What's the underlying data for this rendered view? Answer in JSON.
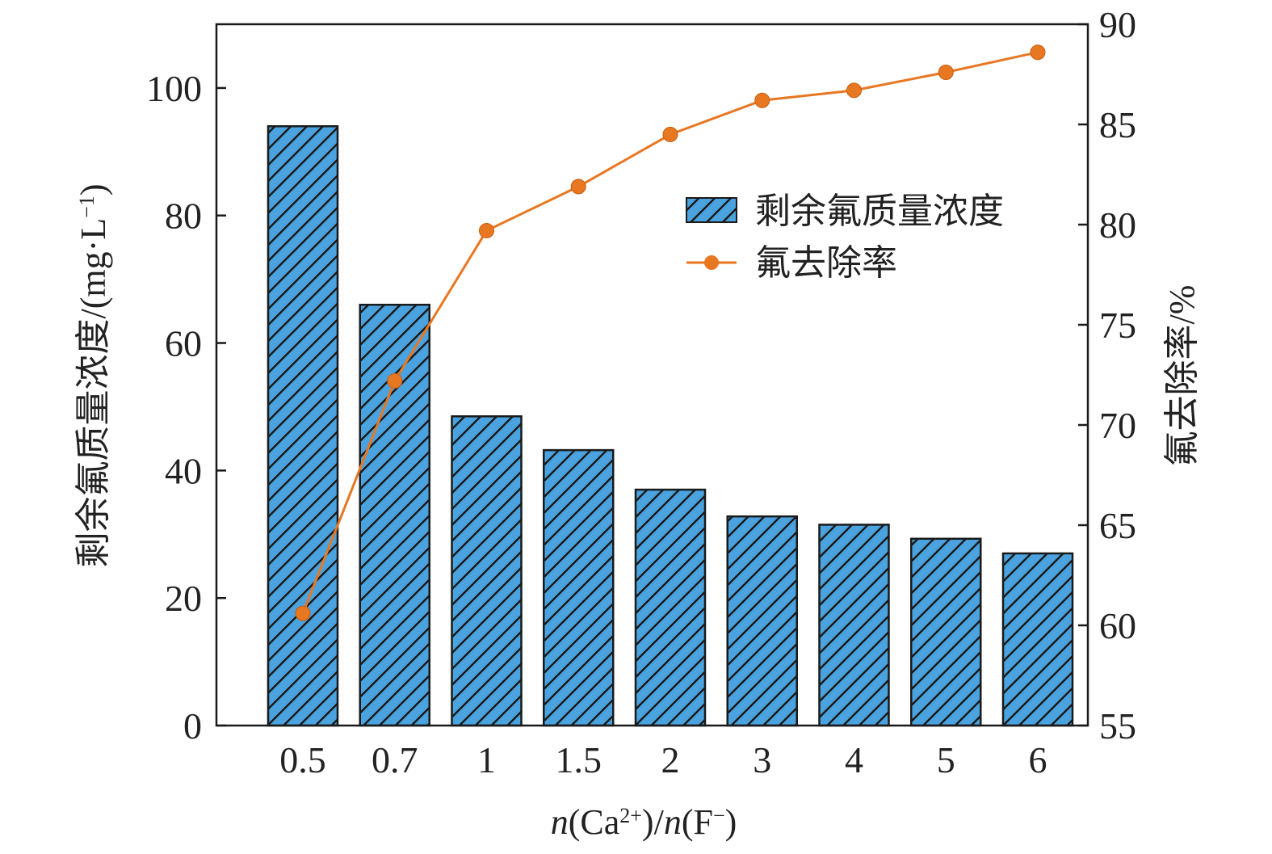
{
  "chart_data": {
    "type": "bar+line",
    "categories": [
      "0.5",
      "0.7",
      "1",
      "1.5",
      "2",
      "3",
      "4",
      "5",
      "6"
    ],
    "series": [
      {
        "name": "剩余氟质量浓度",
        "type": "bar",
        "axis": "left",
        "values": [
          94,
          66,
          48.5,
          43.2,
          37,
          32.8,
          31.5,
          29.3,
          27
        ],
        "color": "#4aa3df",
        "pattern": "diagonal-hatch"
      },
      {
        "name": "氟去除率",
        "type": "line",
        "axis": "right",
        "values": [
          60.6,
          72.2,
          79.7,
          81.9,
          84.5,
          86.2,
          86.7,
          87.6,
          88.6
        ],
        "color": "#e87722"
      }
    ],
    "xlabel": {
      "n1": "n",
      "p1": "(Ca",
      "sup1": "2+",
      "p2": ")/",
      "n2": "n",
      "p3": "(F",
      "sup2": "−",
      "p4": ")"
    },
    "ylabel_left": {
      "main": "剩余氟质量浓度/(mg·L",
      "sup": "−1",
      "end": ")"
    },
    "ylabel_right": "氟去除率/%",
    "ylim_left": [
      0,
      110
    ],
    "yticks_left": [
      "0",
      "20",
      "40",
      "60",
      "80",
      "100"
    ],
    "ylim_right": [
      55,
      90
    ],
    "yticks_right": [
      "55",
      "60",
      "65",
      "70",
      "75",
      "80",
      "85",
      "90"
    ],
    "legend_position": "top-right",
    "grid": false
  }
}
